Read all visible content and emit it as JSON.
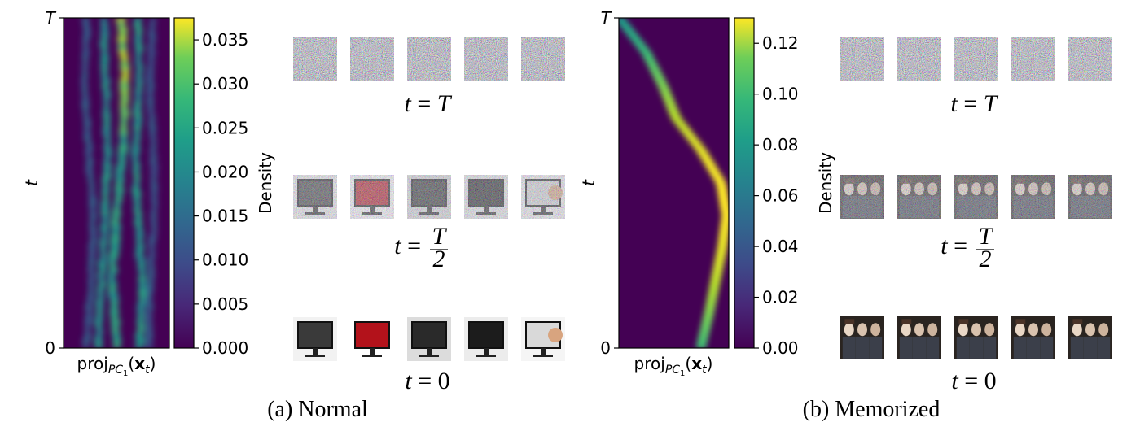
{
  "chart_data": [
    {
      "type": "heatmap",
      "panel": "a",
      "caption": "(a) Normal",
      "xlabel": "proj_{PC_1}(x_t)",
      "xlabel_parts": {
        "base": "proj",
        "sub": "PC",
        "subsub": "1",
        "arg_open": "(",
        "arg_bold": "x",
        "arg_sub": "t",
        "arg_close": ")"
      },
      "ylabel": "t",
      "yticks": [
        "0",
        "T"
      ],
      "colorbar": {
        "label": "Density",
        "ticks": [
          "0.000",
          "0.005",
          "0.010",
          "0.015",
          "0.020",
          "0.025",
          "0.030",
          "0.035"
        ],
        "range": [
          0,
          0.0375
        ],
        "colormap": "viridis"
      },
      "pattern": "multimodal",
      "streams": [
        {
          "x": [
            0.55,
            0.58,
            0.56,
            0.5,
            0.46,
            0.5
          ],
          "w": 0.07,
          "amp": 0.92
        },
        {
          "x": [
            0.38,
            0.4,
            0.42,
            0.39,
            0.36,
            0.33
          ],
          "w": 0.06,
          "amp": 0.6
        },
        {
          "x": [
            0.7,
            0.72,
            0.68,
            0.7,
            0.74,
            0.72
          ],
          "w": 0.06,
          "amp": 0.62
        },
        {
          "x": [
            0.22,
            0.2,
            0.24,
            0.28,
            0.26,
            0.22
          ],
          "w": 0.05,
          "amp": 0.38
        },
        {
          "x": [
            0.84,
            0.82,
            0.85,
            0.86,
            0.82,
            0.8
          ],
          "w": 0.05,
          "amp": 0.35
        }
      ],
      "sample_rows": [
        {
          "label_var": "t",
          "label_eq": "=",
          "label_val": "T",
          "label_frac": false,
          "kind": "noise"
        },
        {
          "label_var": "t",
          "label_eq": "=",
          "label_val": "T",
          "label_den": "2",
          "label_frac": true,
          "kind": "noisy-monitors"
        },
        {
          "label_var": "t",
          "label_eq": "=",
          "label_val": "0",
          "label_frac": false,
          "kind": "monitors"
        }
      ]
    },
    {
      "type": "heatmap",
      "panel": "b",
      "caption": "(b) Memorized",
      "xlabel": "proj_{PC_1}(x_t)",
      "xlabel_parts": {
        "base": "proj",
        "sub": "PC",
        "subsub": "1",
        "arg_open": "(",
        "arg_bold": "x",
        "arg_sub": "t",
        "arg_close": ")"
      },
      "ylabel": "t",
      "yticks": [
        "0",
        "T"
      ],
      "colorbar": {
        "label": "Density",
        "ticks": [
          "0.00",
          "0.02",
          "0.04",
          "0.06",
          "0.08",
          "0.10",
          "0.12"
        ],
        "range": [
          0,
          0.13
        ],
        "colormap": "viridis"
      },
      "pattern": "single-trajectory",
      "trajectory": {
        "t": [
          1.0,
          0.9,
          0.8,
          0.7,
          0.6,
          0.5,
          0.4,
          0.3,
          0.2,
          0.1,
          0.0
        ],
        "x": [
          0.02,
          0.25,
          0.4,
          0.52,
          0.75,
          0.93,
          0.98,
          0.94,
          0.88,
          0.82,
          0.75
        ]
      },
      "sample_rows": [
        {
          "label_var": "t",
          "label_eq": "=",
          "label_val": "T",
          "label_frac": false,
          "kind": "noise"
        },
        {
          "label_var": "t",
          "label_eq": "=",
          "label_val": "T",
          "label_den": "2",
          "label_frac": true,
          "kind": "noisy-people"
        },
        {
          "label_var": "t",
          "label_eq": "=",
          "label_val": "0",
          "label_frac": false,
          "kind": "people"
        }
      ]
    }
  ]
}
